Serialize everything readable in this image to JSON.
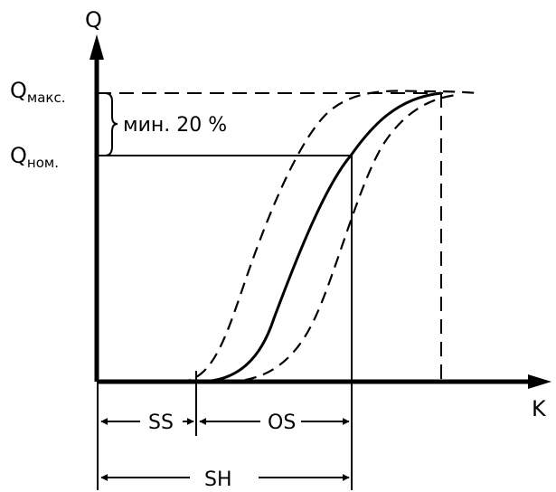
{
  "axes": {
    "y_label": "Q",
    "x_label": "K"
  },
  "levels": {
    "q_max_main": "Q",
    "q_max_sub": "макс.",
    "q_nom_main": "Q",
    "q_nom_sub": "ном."
  },
  "annotation": {
    "min_text": "мин. 20 %"
  },
  "dimensions": {
    "ss": "SS",
    "os": "OS",
    "sh": "SH"
  }
}
